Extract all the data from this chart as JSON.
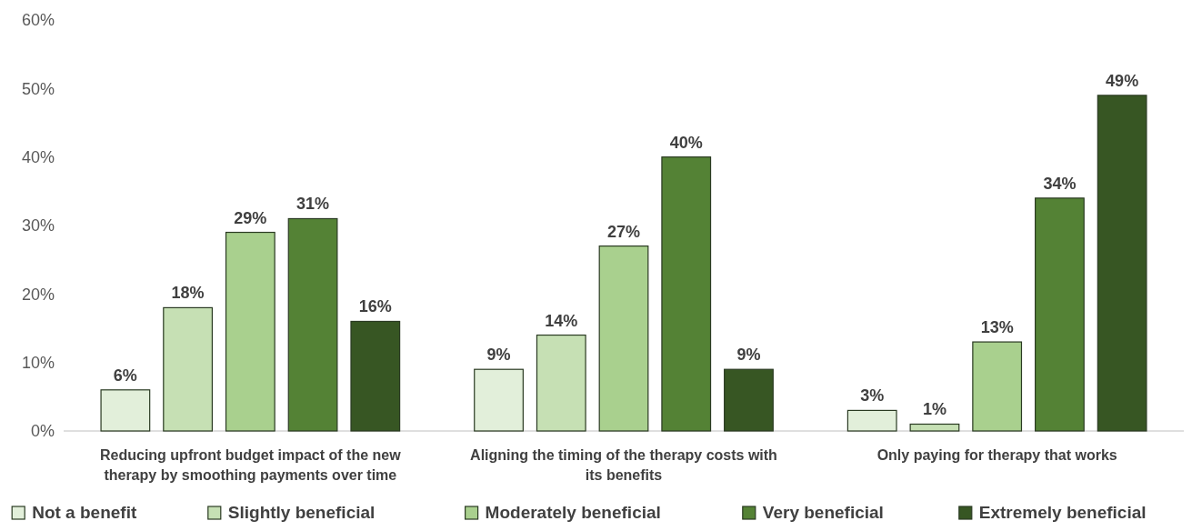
{
  "chart_data": {
    "type": "bar",
    "categories": [
      "Reducing upfront budget impact of the new therapy by smoothing payments over time",
      "Aligning the timing of the therapy costs with its benefits",
      "Only paying for therapy that works"
    ],
    "series": [
      {
        "name": "Not a benefit",
        "color": "#e2efda",
        "values": [
          6,
          9,
          3
        ],
        "value_labels": [
          "6%",
          "9%",
          "3%"
        ]
      },
      {
        "name": "Slightly beneficial",
        "color": "#c6e0b4",
        "values": [
          18,
          14,
          1
        ],
        "value_labels": [
          "18%",
          "14%",
          "1%"
        ]
      },
      {
        "name": "Moderately beneficial",
        "color": "#a9d08e",
        "values": [
          29,
          27,
          13
        ],
        "value_labels": [
          "29%",
          "27%",
          "13%"
        ]
      },
      {
        "name": "Very beneficial",
        "color": "#548235",
        "values": [
          31,
          40,
          34
        ],
        "value_labels": [
          "31%",
          "40%",
          "34%"
        ]
      },
      {
        "name": "Extremely beneficial",
        "color": "#375623",
        "values": [
          16,
          9,
          49
        ],
        "value_labels": [
          "16%",
          "9%",
          "49%"
        ]
      }
    ],
    "ylim": [
      0,
      60
    ],
    "yticks": [
      {
        "value": 0,
        "label": "0%"
      },
      {
        "value": 10,
        "label": "10%"
      },
      {
        "value": 20,
        "label": "20%"
      },
      {
        "value": 30,
        "label": "30%"
      },
      {
        "value": 40,
        "label": "40%"
      },
      {
        "value": 50,
        "label": "50%"
      },
      {
        "value": 60,
        "label": "60%"
      }
    ],
    "grid": false,
    "legend": "bottom"
  }
}
